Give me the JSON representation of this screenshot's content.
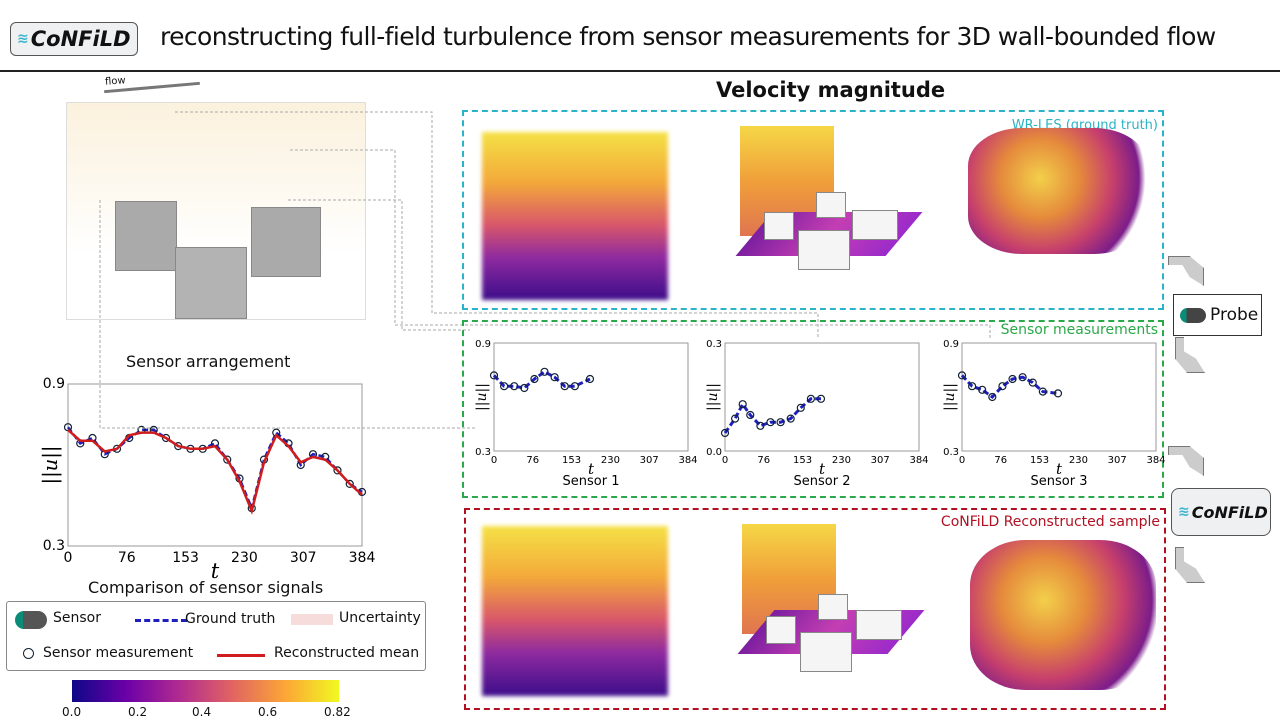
{
  "header": {
    "logo": "CoNFiLD",
    "title": "reconstructing full-field turbulence from sensor measurements for 3D wall-bounded flow"
  },
  "left": {
    "flow_label": "flow",
    "arrangement_caption": "Sensor arrangement",
    "comparison_caption": "Comparison of sensor signals"
  },
  "center": {
    "title": "Velocity magnitude",
    "gt_label": "WR-LES (ground truth)",
    "sensor_label": "Sensor measurements",
    "recon_label": "CoNFiLD Reconstructed sample"
  },
  "right": {
    "probe_label": "Probe",
    "model_label": "CoNFiLD"
  },
  "legend": {
    "sensor": "Sensor",
    "ground_truth": "Ground truth",
    "uncertainty": "Uncertainty",
    "measurement": "Sensor measurement",
    "mean": "Reconstructed mean"
  },
  "colorbar": {
    "colormap": "plasma",
    "ticks": [
      "0.0",
      "0.2",
      "0.4",
      "0.6",
      "0.82"
    ]
  },
  "colors": {
    "ground_truth": "#1f1fbf",
    "mean": "#d01c1c",
    "gt_box": "#2bb3c8",
    "sensor_box": "#2aa84a",
    "recon_box": "#b01020"
  },
  "chart_data": [
    {
      "type": "line",
      "ylabel": "||u||",
      "xlabel": "t",
      "xticks": [
        "0",
        "76",
        "153",
        "230",
        "307",
        "384"
      ],
      "yticks": [
        "0.3",
        "0.9"
      ],
      "ylim": [
        0.3,
        0.9
      ],
      "xlim": [
        0,
        384
      ],
      "x": [
        0,
        16,
        32,
        48,
        64,
        80,
        96,
        112,
        128,
        144,
        160,
        176,
        192,
        208,
        224,
        240,
        256,
        272,
        288,
        304,
        320,
        336,
        352,
        368,
        384
      ],
      "series": [
        {
          "name": "Ground truth",
          "values": [
            0.74,
            0.68,
            0.7,
            0.64,
            0.66,
            0.7,
            0.73,
            0.73,
            0.7,
            0.67,
            0.66,
            0.66,
            0.68,
            0.62,
            0.55,
            0.44,
            0.62,
            0.72,
            0.68,
            0.6,
            0.64,
            0.63,
            0.58,
            0.53,
            0.5
          ]
        },
        {
          "name": "Reconstructed mean",
          "values": [
            0.73,
            0.69,
            0.69,
            0.65,
            0.66,
            0.71,
            0.72,
            0.72,
            0.7,
            0.67,
            0.66,
            0.66,
            0.67,
            0.62,
            0.54,
            0.43,
            0.61,
            0.71,
            0.67,
            0.61,
            0.63,
            0.62,
            0.58,
            0.53,
            0.49
          ]
        }
      ]
    },
    {
      "type": "line",
      "title": "Sensor 1",
      "ylabel": "||u||",
      "xlabel": "t",
      "xticks": [
        "0",
        "76",
        "153",
        "230",
        "307",
        "384"
      ],
      "yticks": [
        "0.3",
        "0.9"
      ],
      "ylim": [
        0.3,
        0.9
      ],
      "xlim": [
        0,
        384
      ],
      "x": [
        0,
        20,
        40,
        60,
        80,
        100,
        120,
        140,
        160,
        190
      ],
      "series": [
        {
          "values": [
            0.72,
            0.66,
            0.66,
            0.65,
            0.7,
            0.74,
            0.71,
            0.66,
            0.66,
            0.7
          ]
        }
      ]
    },
    {
      "type": "line",
      "title": "Sensor 2",
      "ylabel": "||u||",
      "xlabel": "t",
      "xticks": [
        "0",
        "76",
        "153",
        "230",
        "307",
        "384"
      ],
      "yticks": [
        "0.0",
        "0.3"
      ],
      "ylim": [
        0.0,
        0.3
      ],
      "xlim": [
        0,
        384
      ],
      "x": [
        0,
        20,
        35,
        50,
        70,
        90,
        110,
        130,
        150,
        170,
        190
      ],
      "series": [
        {
          "values": [
            0.05,
            0.09,
            0.13,
            0.1,
            0.07,
            0.08,
            0.08,
            0.09,
            0.12,
            0.145,
            0.145
          ]
        }
      ]
    },
    {
      "type": "line",
      "title": "Sensor 3",
      "ylabel": "||u||",
      "xlabel": "t",
      "xticks": [
        "0",
        "76",
        "153",
        "230",
        "307",
        "384"
      ],
      "yticks": [
        "0.3",
        "0.9"
      ],
      "ylim": [
        0.3,
        0.9
      ],
      "xlim": [
        0,
        384
      ],
      "x": [
        0,
        20,
        40,
        60,
        80,
        100,
        120,
        140,
        160,
        190
      ],
      "series": [
        {
          "values": [
            0.72,
            0.66,
            0.64,
            0.6,
            0.66,
            0.7,
            0.71,
            0.68,
            0.63,
            0.62
          ]
        }
      ]
    }
  ]
}
